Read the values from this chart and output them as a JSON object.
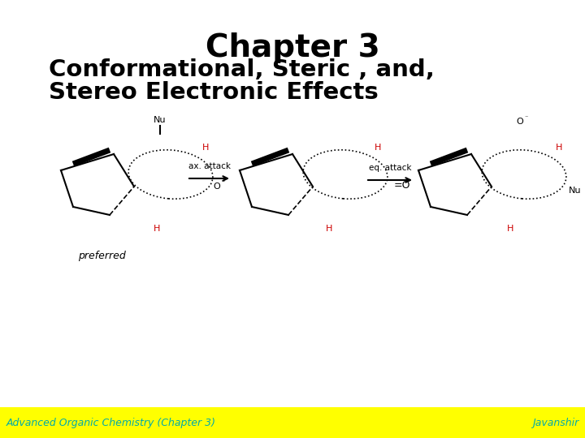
{
  "title": "Chapter 3",
  "subtitle_line1": "Conformational, Steric , and,",
  "subtitle_line2": "Stereo Electronic Effects",
  "footer_left": "Advanced Organic Chemistry (Chapter 3)",
  "footer_right": "Javanshir",
  "footer_bg": "#FFFF00",
  "footer_text_color": "#00AAAA",
  "title_color": "#000000",
  "subtitle_color": "#000000",
  "bg_color": "#FFFFFF",
  "red_color": "#CC0000"
}
